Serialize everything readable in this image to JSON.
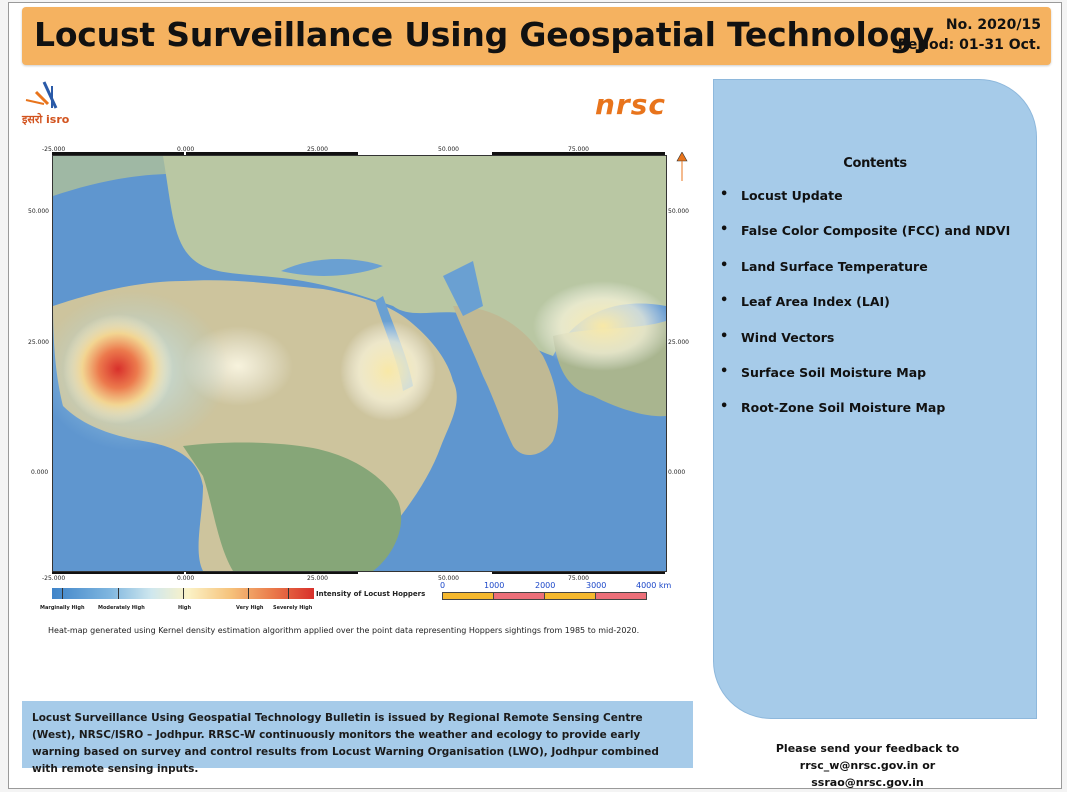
{
  "header": {
    "title": "Locust Surveillance Using Geospatial Technology",
    "issue_number": "No. 2020/15",
    "period": "Period: 01-31 Oct."
  },
  "logos": {
    "isro_text": "इसरो isro",
    "nrsc_text": "nrsc"
  },
  "map": {
    "x_ticks": [
      "-25.000",
      "0.000",
      "25.000",
      "50.000",
      "75.000"
    ],
    "y_ticks": [
      "50.000",
      "25.000",
      "0.000"
    ],
    "legend": {
      "title": "Intensity of Locust Hoppers",
      "levels": [
        "Marginally High",
        "Moderately High",
        "High",
        "Very High",
        "Severely High"
      ]
    },
    "scale_bar": {
      "labels": [
        "0",
        "1000",
        "2000",
        "3000",
        "4000 km"
      ],
      "colors": [
        "#f5b82e",
        "#ec6f79",
        "#f5b82e",
        "#ec6f79"
      ]
    },
    "caption": "Heat-map generated using Kernel density estimation algorithm applied over the point data representing Hoppers sightings from 1985 to mid-2020."
  },
  "contents": {
    "title": "Contents",
    "items": [
      "Locust Update",
      "False Color Composite (FCC) and NDVI",
      "Land Surface Temperature",
      "Leaf Area Index (LAI)",
      "Wind Vectors",
      "Surface Soil Moisture Map",
      "Root-Zone Soil Moisture Map"
    ]
  },
  "footer": {
    "text": "Locust Surveillance Using Geospatial Technology Bulletin is issued by Regional Remote Sensing Centre (West), NRSC/ISRO – Jodhpur. RRSC-W continuously monitors the weather and ecology to provide early warning based on survey and control results from Locust Warning Organisation (LWO), Jodhpur combined with remote sensing inputs."
  },
  "feedback": {
    "line1": "Please send your feedback to",
    "line2": "rrsc_w@nrsc.gov.in or  ssrao@nrsc.gov.in"
  },
  "colors": {
    "banner": "#f5b260",
    "panel": "#a6cbe9",
    "nrsc": "#e8741c"
  }
}
